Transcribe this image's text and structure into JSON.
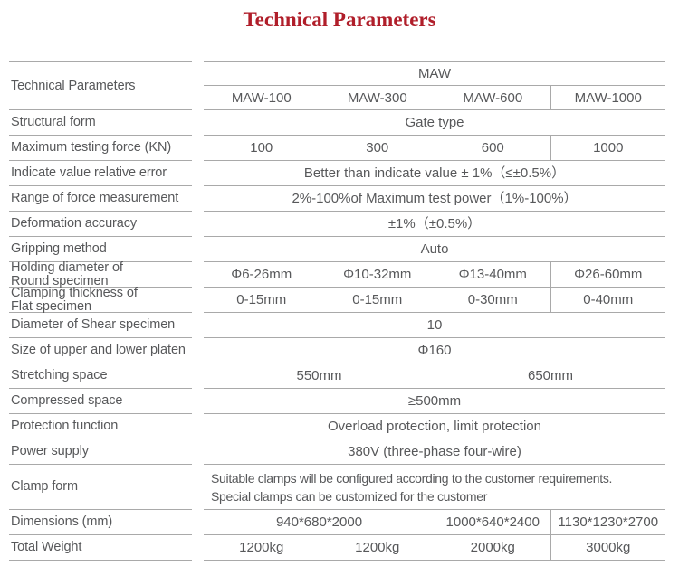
{
  "title": "Technical Parameters",
  "colors": {
    "accent": "#B01E2A",
    "text": "#57585A",
    "line": "#A9A9A9"
  },
  "table": {
    "header": {
      "label": "Technical Parameters",
      "group": "MAW",
      "models": [
        "MAW-100",
        "MAW-300",
        "MAW-600",
        "MAW-1000"
      ]
    },
    "rows": [
      {
        "label": "Structural form",
        "cells": [
          "Gate type"
        ]
      },
      {
        "label": "Maximum testing force (KN)",
        "cells": [
          "100",
          "300",
          "600",
          "1000"
        ]
      },
      {
        "label": "Indicate value relative error",
        "cells": [
          "Better than indicate value ± 1%（≤±0.5%）"
        ]
      },
      {
        "label": "Range of force measurement",
        "cells": [
          "2%-100%of Maximum test power（1%-100%）"
        ]
      },
      {
        "label": "Deformation accuracy",
        "cells": [
          "±1%（±0.5%）"
        ]
      },
      {
        "label": "Gripping method",
        "cells": [
          "Auto"
        ]
      },
      {
        "label": "Holding diameter of\nRound specimen",
        "cells": [
          "Φ6-26mm",
          "Φ10-32mm",
          "Φ13-40mm",
          "Φ26-60mm"
        ]
      },
      {
        "label": "Clamping thickness of\nFlat specimen",
        "cells": [
          "0-15mm",
          "0-15mm",
          "0-30mm",
          "0-40mm"
        ]
      },
      {
        "label": "Diameter of Shear specimen",
        "cells": [
          "10"
        ]
      },
      {
        "label": "Size of upper and lower platen",
        "cells": [
          "Φ160"
        ]
      },
      {
        "label": "Stretching space",
        "cells": [
          "550mm",
          "650mm"
        ]
      },
      {
        "label": "Compressed space",
        "cells": [
          "≥500mm"
        ]
      },
      {
        "label": "Protection function",
        "cells": [
          "Overload protection, limit protection"
        ]
      },
      {
        "label": "Power supply",
        "cells": [
          "380V (three-phase four-wire)"
        ]
      },
      {
        "label": "Clamp form",
        "cells": [
          "Suitable clamps will be configured according to the customer requirements.\nSpecial clamps can be customized for the customer"
        ]
      },
      {
        "label": "Dimensions (mm)",
        "cells": [
          "940*680*2000",
          "1000*640*2400",
          "1130*1230*2700"
        ]
      },
      {
        "label": "Total Weight",
        "cells": [
          "1200kg",
          "1200kg",
          "2000kg",
          "3000kg"
        ]
      }
    ]
  }
}
